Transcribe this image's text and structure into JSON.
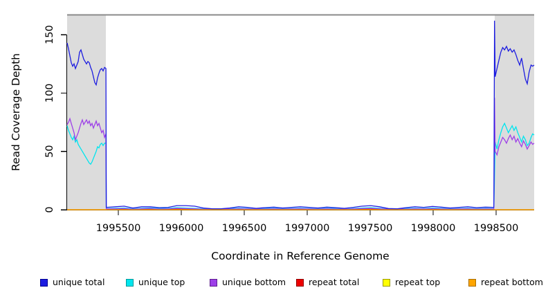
{
  "chart_data": {
    "type": "line",
    "title": "",
    "xlabel": "Coordinate in Reference Genome",
    "ylabel": "Read Coverage Depth",
    "xlim": [
      1995093,
      1998802
    ],
    "ylim": [
      0,
      167
    ],
    "x_ticks": [
      1995500,
      1996000,
      1996500,
      1997000,
      1997500,
      1998000,
      1998500
    ],
    "y_ticks": [
      0,
      50,
      100,
      150
    ],
    "grid": false,
    "legend_position": "bottom",
    "plot_bg": "#ffffff",
    "top_border_color": "#8a8a8a",
    "axis_color": "#000000",
    "masked_region_color": "#dcdcdc",
    "masked_regions": [
      {
        "x0": 1995093,
        "x1": 1995401
      },
      {
        "x0": 1998489,
        "x1": 1998802
      }
    ],
    "series": [
      {
        "name": "unique total",
        "color": "#1c1ce0",
        "swatch_border": "#000090",
        "x": [
          1995093,
          1995104,
          1995115,
          1995126,
          1995137,
          1995148,
          1995159,
          1995170,
          1995181,
          1995192,
          1995203,
          1995214,
          1995225,
          1995236,
          1995247,
          1995258,
          1995269,
          1995280,
          1995291,
          1995302,
          1995313,
          1995324,
          1995335,
          1995346,
          1995357,
          1995368,
          1995379,
          1995390,
          1995401,
          1995404,
          1995475,
          1995545,
          1995615,
          1995685,
          1995755,
          1995825,
          1995895,
          1995965,
          1996035,
          1996105,
          1996175,
          1996245,
          1996315,
          1996385,
          1996455,
          1996525,
          1996595,
          1996665,
          1996735,
          1996805,
          1996875,
          1996945,
          1997015,
          1997085,
          1997155,
          1997225,
          1997295,
          1997365,
          1997435,
          1997505,
          1997575,
          1997645,
          1997715,
          1997785,
          1997855,
          1997925,
          1997995,
          1998065,
          1998135,
          1998205,
          1998275,
          1998345,
          1998415,
          1998482,
          1998487,
          1998492,
          1998507,
          1998522,
          1998537,
          1998552,
          1998567,
          1998582,
          1998597,
          1998612,
          1998627,
          1998642,
          1998657,
          1998672,
          1998687,
          1998702,
          1998717,
          1998732,
          1998747,
          1998762,
          1998777,
          1998790,
          1998802
        ],
        "y": [
          143,
          138,
          132,
          126,
          123,
          125,
          121,
          124,
          127,
          135,
          137,
          133,
          129,
          127,
          125,
          127,
          126,
          122,
          119,
          114,
          109,
          107,
          113,
          117,
          120,
          121,
          119,
          122,
          121,
          2,
          2.5,
          3,
          1.5,
          2.5,
          2.5,
          1.8,
          2,
          3.5,
          3.5,
          3,
          1.5,
          0.8,
          0.8,
          1.5,
          2.5,
          2,
          1.2,
          1.8,
          2.2,
          1.5,
          2,
          2.5,
          2,
          1.5,
          2.2,
          1.8,
          1.2,
          2,
          3,
          3.5,
          2.5,
          1,
          0.8,
          1.8,
          2.5,
          2,
          2.8,
          2.2,
          1.5,
          2,
          2.5,
          1.8,
          2.2,
          2,
          162,
          114,
          121,
          128,
          135,
          139,
          137,
          140,
          136,
          138,
          135,
          137,
          133,
          128,
          124,
          130,
          121,
          112,
          108,
          118,
          124,
          123,
          124
        ]
      },
      {
        "name": "unique top",
        "color": "#00e5ee",
        "swatch_border": "#009a9a",
        "x": [
          1995093,
          1995104,
          1995115,
          1995126,
          1995137,
          1995148,
          1995159,
          1995170,
          1995181,
          1995192,
          1995203,
          1995214,
          1995225,
          1995236,
          1995247,
          1995258,
          1995269,
          1995280,
          1995291,
          1995302,
          1995313,
          1995324,
          1995335,
          1995346,
          1995357,
          1995368,
          1995379,
          1995390,
          1995401,
          1995404,
          1995475,
          1995545,
          1995615,
          1995685,
          1995755,
          1995825,
          1995895,
          1995965,
          1996035,
          1996105,
          1996175,
          1996245,
          1996315,
          1996385,
          1996455,
          1996525,
          1996595,
          1996665,
          1996735,
          1996805,
          1996875,
          1996945,
          1997015,
          1997085,
          1997155,
          1997225,
          1997295,
          1997365,
          1997435,
          1997505,
          1997575,
          1997645,
          1997715,
          1997785,
          1997855,
          1997925,
          1997995,
          1998065,
          1998135,
          1998205,
          1998275,
          1998345,
          1998415,
          1998482,
          1998492,
          1998507,
          1998522,
          1998537,
          1998552,
          1998567,
          1998582,
          1998597,
          1998612,
          1998627,
          1998642,
          1998657,
          1998672,
          1998687,
          1998702,
          1998717,
          1998732,
          1998747,
          1998762,
          1998777,
          1998790,
          1998802
        ],
        "y": [
          72,
          68,
          65,
          62,
          60,
          63,
          58,
          60,
          56,
          54,
          52,
          50,
          48,
          46,
          44,
          42,
          40,
          39,
          41,
          44,
          47,
          50,
          54,
          53,
          56,
          57,
          55,
          57,
          57,
          1,
          1.2,
          1.5,
          0.8,
          1.2,
          1.5,
          1,
          1.2,
          1.8,
          1.5,
          1.2,
          0.8,
          0.5,
          0.5,
          1,
          1.2,
          1,
          0.6,
          1,
          1.2,
          0.8,
          1,
          1.2,
          1,
          0.8,
          1.2,
          1,
          0.6,
          1,
          1.5,
          1.8,
          1.2,
          0.5,
          0.5,
          1,
          1.2,
          1,
          1.4,
          1.1,
          0.8,
          1,
          1.2,
          0.9,
          1.1,
          1,
          58,
          52,
          60,
          66,
          71,
          74,
          70,
          66,
          69,
          72,
          68,
          71,
          66,
          62,
          58,
          63,
          60,
          55,
          57,
          62,
          65,
          64
        ]
      },
      {
        "name": "unique bottom",
        "color": "#9d3fe8",
        "swatch_border": "#5e1d8f",
        "x": [
          1995093,
          1995104,
          1995115,
          1995126,
          1995137,
          1995148,
          1995159,
          1995170,
          1995181,
          1995192,
          1995203,
          1995214,
          1995225,
          1995236,
          1995247,
          1995258,
          1995269,
          1995280,
          1995291,
          1995302,
          1995313,
          1995324,
          1995335,
          1995346,
          1995357,
          1995368,
          1995379,
          1995390,
          1995401,
          1995404,
          1995475,
          1995545,
          1995615,
          1995685,
          1995755,
          1995825,
          1995895,
          1995965,
          1996035,
          1996105,
          1996175,
          1996245,
          1996315,
          1996385,
          1996455,
          1996525,
          1996595,
          1996665,
          1996735,
          1996805,
          1996875,
          1996945,
          1997015,
          1997085,
          1997155,
          1997225,
          1997295,
          1997365,
          1997435,
          1997505,
          1997575,
          1997645,
          1997715,
          1997785,
          1997855,
          1997925,
          1997995,
          1998065,
          1998135,
          1998205,
          1998275,
          1998345,
          1998415,
          1998482,
          1998487,
          1998492,
          1998507,
          1998522,
          1998537,
          1998552,
          1998567,
          1998582,
          1998597,
          1998612,
          1998627,
          1998642,
          1998657,
          1998672,
          1998687,
          1998702,
          1998717,
          1998732,
          1998747,
          1998762,
          1998777,
          1998790,
          1998802
        ],
        "y": [
          73,
          75,
          78,
          74,
          70,
          66,
          60,
          63,
          66,
          70,
          74,
          77,
          73,
          75,
          77,
          74,
          76,
          72,
          74,
          70,
          73,
          76,
          72,
          74,
          70,
          66,
          68,
          62,
          65,
          0.8,
          0.8,
          1,
          0.5,
          0.8,
          1,
          0.6,
          0.8,
          1.2,
          1,
          0.8,
          0.5,
          0.4,
          0.4,
          0.6,
          0.8,
          0.7,
          0.4,
          0.6,
          0.8,
          0.5,
          0.7,
          0.8,
          0.7,
          0.5,
          0.8,
          0.6,
          0.4,
          0.7,
          1,
          1.2,
          0.8,
          0.4,
          0.4,
          0.6,
          0.8,
          0.7,
          0.9,
          0.7,
          0.5,
          0.7,
          0.8,
          0.6,
          0.7,
          0.7,
          96,
          50,
          47,
          54,
          58,
          62,
          60,
          57,
          61,
          64,
          60,
          63,
          58,
          61,
          57,
          54,
          59,
          56,
          52,
          55,
          58,
          56,
          57
        ]
      },
      {
        "name": "repeat total",
        "color": "#ee0000",
        "swatch_border": "#900000",
        "x": [
          1995093,
          1995404,
          1995440,
          1998470,
          1998489,
          1998802
        ],
        "y": [
          0,
          0,
          0.5,
          0.5,
          0,
          0
        ]
      },
      {
        "name": "repeat top",
        "color": "#ffff00",
        "swatch_border": "#9a9a00",
        "x": [
          1995093,
          1998802
        ],
        "y": [
          0,
          0
        ]
      },
      {
        "name": "repeat bottom",
        "color": "#ffa500",
        "swatch_border": "#a86e00",
        "x": [
          1995093,
          1998802
        ],
        "y": [
          0,
          0
        ]
      }
    ]
  }
}
